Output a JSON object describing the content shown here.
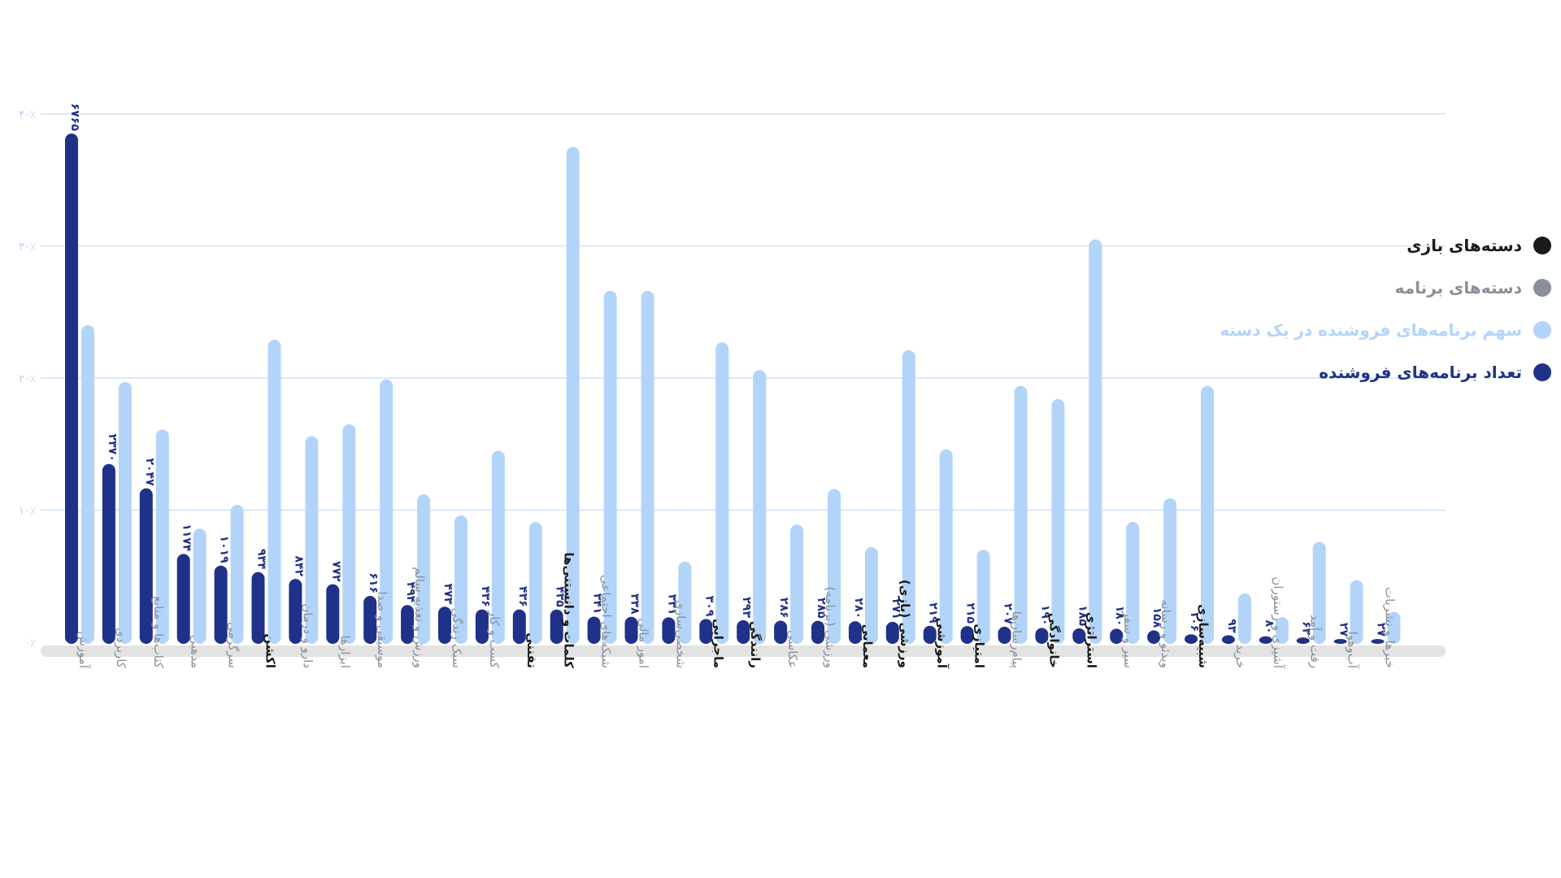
{
  "legend": {
    "items": [
      {
        "label": "دسته‌های بازی",
        "color": "#1a1a1a"
      },
      {
        "label": "دسته‌های برنامه",
        "color": "#8a8f98"
      },
      {
        "label": "سهم برنامه‌های فروشنده در یک دسته",
        "color": "#b3d4f9"
      },
      {
        "label": "تعداد برنامه‌های فروشنده",
        "color": "#1f3189"
      }
    ]
  },
  "chart_data": {
    "type": "bar",
    "yticks": [
      "۰٪",
      "۱۰٪",
      "۲۰٪",
      "۳۰٪",
      "۴۰٪"
    ],
    "categories": [
      {
        "label": "آموزش",
        "group": "app"
      },
      {
        "label": "کاربردی",
        "group": "app"
      },
      {
        "label": "کتاب‌ها و منابع",
        "group": "app"
      },
      {
        "label": "مذهبی",
        "group": "app"
      },
      {
        "label": "سرگرمی",
        "group": "app"
      },
      {
        "label": "اکشن",
        "group": "game"
      },
      {
        "label": "دارو و درمان",
        "group": "app"
      },
      {
        "label": "ابزارها",
        "group": "app"
      },
      {
        "label": "موسیقی و صدا",
        "group": "app"
      },
      {
        "label": "ورزش و تغذیه سالم",
        "group": "app"
      },
      {
        "label": "سبک زندگی",
        "group": "app"
      },
      {
        "label": "کسب و کار",
        "group": "app"
      },
      {
        "label": "تفننی",
        "group": "game"
      },
      {
        "label": "کلمات و دانستنی‌ها",
        "group": "game"
      },
      {
        "label": "شبکه‌های اجتماعی",
        "group": "app"
      },
      {
        "label": "امور مالی",
        "group": "app"
      },
      {
        "label": "شخصی‌سازی",
        "group": "app"
      },
      {
        "label": "ماجرایی",
        "group": "game"
      },
      {
        "label": "رانندگی",
        "group": "game"
      },
      {
        "label": "عکاسی",
        "group": "app"
      },
      {
        "label": "ورزشی (برنامه)",
        "group": "app"
      },
      {
        "label": "معمایی",
        "group": "game"
      },
      {
        "label": "ورزشی (بازی)",
        "group": "game"
      },
      {
        "label": "آموزشی",
        "group": "game"
      },
      {
        "label": "امتیازی",
        "group": "game"
      },
      {
        "label": "پیام‌رسان‌ها",
        "group": "app"
      },
      {
        "label": "خانوادگی",
        "group": "game"
      },
      {
        "label": "استراتژی",
        "group": "game"
      },
      {
        "label": "سیر و سفر",
        "group": "app"
      },
      {
        "label": "ویدئو و رسانه",
        "group": "app"
      },
      {
        "label": "شبیه‌سازی",
        "group": "game"
      },
      {
        "label": "خرید",
        "group": "app"
      },
      {
        "label": "آشپزی و رستوران",
        "group": "app"
      },
      {
        "label": "رفت و آمد",
        "group": "app"
      },
      {
        "label": "آب‌وهوا",
        "group": "app"
      },
      {
        "label": "خبرها و نشریات",
        "group": "app"
      }
    ],
    "series": [
      {
        "name": "تعداد برنامه‌های فروشنده",
        "color": "#1f3189",
        "values": [
          6765,
          2370,
          2047,
          1174,
          1019,
          934,
          842,
          772,
          616,
          494,
          473,
          436,
          436,
          435,
          341,
          338,
          331,
          309,
          293,
          286,
          285,
          280,
          271,
          219,
          215,
          207,
          190,
          185,
          180,
          158,
          106,
          93,
          80,
          63,
          27,
          27
        ],
        "labels": [
          "۶۷۶۵",
          "۲۳۷۰",
          "۲۰۴۷",
          "۱۱۷۴",
          "۱۰۱۹",
          "۹۳۴",
          "۸۴۲",
          "۷۷۲",
          "۶۱۶",
          "۴۹۴",
          "۴۷۳",
          "۴۳۶",
          "۴۳۶",
          "۴۳۵",
          "۳۴۱",
          "۳۳۸",
          "۳۳۱",
          "۳۰۹",
          "۲۹۳",
          "۲۸۶",
          "۲۸۵",
          "۲۸۰",
          "۲۷۱",
          "۲۱۹",
          "۲۱۵",
          "۲۰۷",
          "۱۹۰",
          "۱۸۵",
          "۱۸۰",
          "۱۵۸",
          "۱۰۶",
          "۹۳",
          "۸۰",
          "۶۳",
          "۲۷",
          "۲۷"
        ]
      },
      {
        "name": "سهم برنامه‌های فروشنده در یک دسته",
        "color": "#b3d4f9",
        "values": [
          24,
          19.7,
          16.1,
          8.6,
          10.4,
          22.9,
          15.6,
          16.5,
          19.9,
          11.2,
          9.6,
          14.5,
          9.1,
          37.5,
          26.6,
          26.6,
          6.1,
          22.7,
          20.6,
          8.9,
          11.6,
          7.2,
          22.1,
          14.6,
          7.0,
          19.4,
          18.4,
          30.5,
          9.1,
          10.9,
          19.4,
          3.7,
          1.9,
          7.6,
          4.7,
          2.3
        ]
      }
    ],
    "grid": true,
    "legend_position": "right"
  }
}
